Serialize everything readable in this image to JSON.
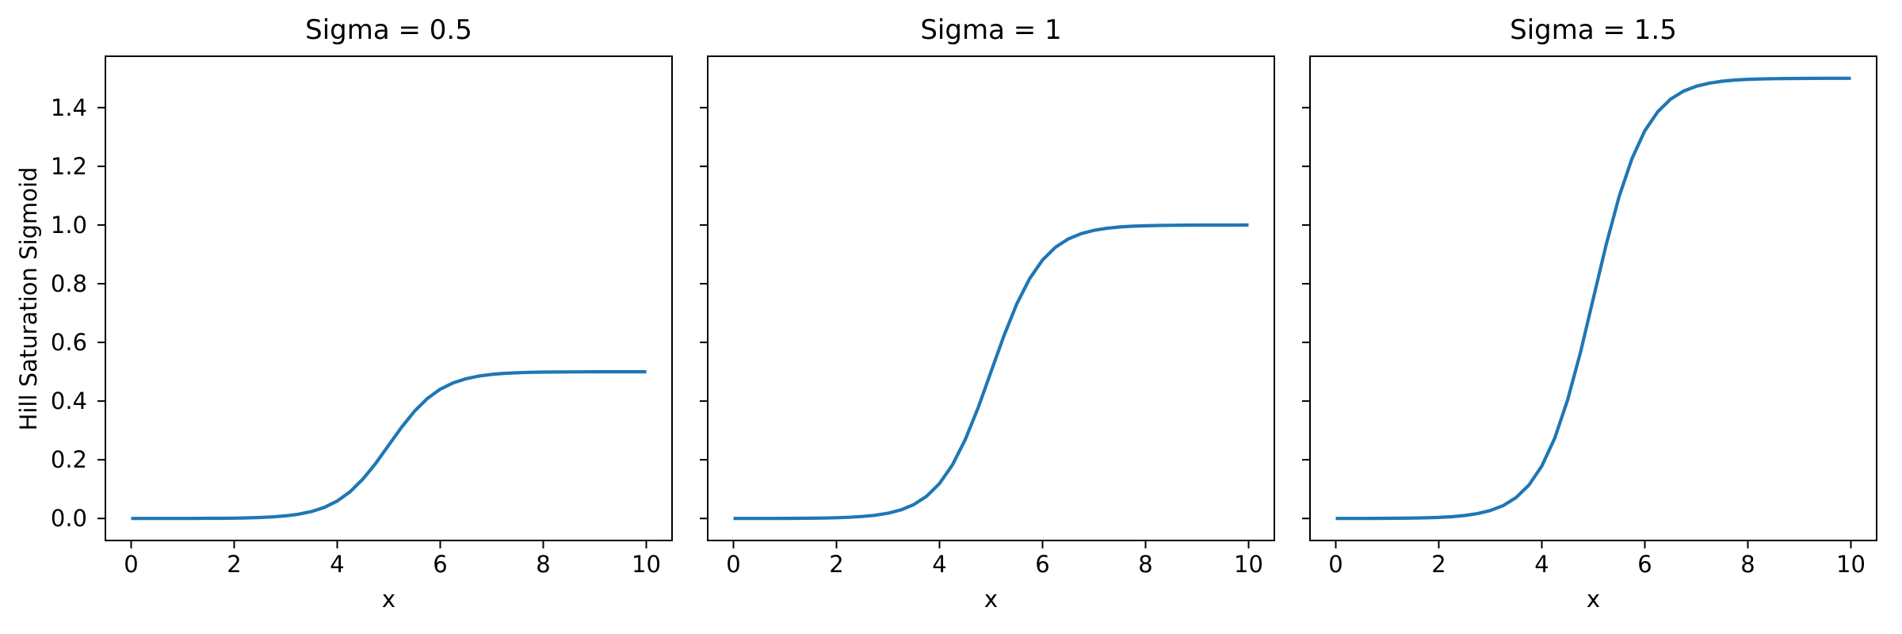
{
  "chart_data": {
    "type": "line",
    "xlabel": "x",
    "ylabel": "Hill Saturation Sigmoid",
    "xlim": [
      -0.5,
      10.5
    ],
    "ylim": [
      -0.075,
      1.575
    ],
    "grid": false,
    "legend": "none",
    "line_color": "#1f77b4",
    "axis_color": "#000000",
    "xticks": {
      "values": [
        0,
        2,
        4,
        6,
        8,
        10
      ],
      "labels": [
        "0",
        "2",
        "4",
        "6",
        "8",
        "10"
      ]
    },
    "yticks": {
      "values": [
        0.0,
        0.2,
        0.4,
        0.6,
        0.8,
        1.0,
        1.2,
        1.4
      ],
      "labels": [
        "0.0",
        "0.2",
        "0.4",
        "0.6",
        "0.8",
        "1.0",
        "1.2",
        "1.4"
      ]
    },
    "x": [
      0,
      0.25,
      0.5,
      0.75,
      1,
      1.25,
      1.5,
      1.75,
      2,
      2.25,
      2.5,
      2.75,
      3,
      3.25,
      3.5,
      3.75,
      4,
      4.25,
      4.5,
      4.75,
      5,
      5.25,
      5.5,
      5.75,
      6,
      6.25,
      6.5,
      6.75,
      7,
      7.25,
      7.5,
      7.75,
      8,
      8.25,
      8.5,
      8.75,
      9,
      9.25,
      9.5,
      9.75,
      10
    ],
    "subplots": [
      {
        "title": "Sigma = 0.5",
        "sigma": 0.5,
        "values": [
          0.0,
          0.0,
          0.0001,
          0.0001,
          0.0002,
          0.0003,
          0.0005,
          0.0007,
          0.0012,
          0.002,
          0.0033,
          0.0055,
          0.009,
          0.0146,
          0.0237,
          0.038,
          0.0596,
          0.0912,
          0.1345,
          0.1887,
          0.25,
          0.3113,
          0.3655,
          0.4088,
          0.4404,
          0.462,
          0.4763,
          0.4853,
          0.491,
          0.4945,
          0.4967,
          0.498,
          0.4988,
          0.4992,
          0.4995,
          0.4997,
          0.4998,
          0.4999,
          0.4999,
          0.5,
          0.5
        ]
      },
      {
        "title": "Sigma = 1",
        "sigma": 1,
        "values": [
          0.0,
          0.0001,
          0.0001,
          0.0002,
          0.0003,
          0.0006,
          0.0009,
          0.0015,
          0.0025,
          0.0041,
          0.0067,
          0.011,
          0.018,
          0.0293,
          0.0474,
          0.0759,
          0.1192,
          0.1824,
          0.2689,
          0.3775,
          0.5,
          0.6225,
          0.7311,
          0.8176,
          0.8808,
          0.9241,
          0.9526,
          0.9707,
          0.982,
          0.989,
          0.9933,
          0.9959,
          0.9975,
          0.9985,
          0.9991,
          0.9994,
          0.9997,
          0.9998,
          0.9999,
          0.9999,
          1.0
        ]
      },
      {
        "title": "Sigma = 1.5",
        "sigma": 1.5,
        "values": [
          0.0001,
          0.0001,
          0.0002,
          0.0003,
          0.0005,
          0.0008,
          0.0014,
          0.0022,
          0.0037,
          0.0061,
          0.01,
          0.0165,
          0.027,
          0.0439,
          0.071,
          0.1139,
          0.1787,
          0.2735,
          0.4034,
          0.5662,
          0.75,
          0.9338,
          1.0966,
          1.2265,
          1.3213,
          1.3861,
          1.429,
          1.4561,
          1.473,
          1.4835,
          1.49,
          1.4939,
          1.4963,
          1.4978,
          1.4986,
          1.4992,
          1.4995,
          1.4997,
          1.4998,
          1.4999,
          1.5
        ]
      }
    ]
  }
}
